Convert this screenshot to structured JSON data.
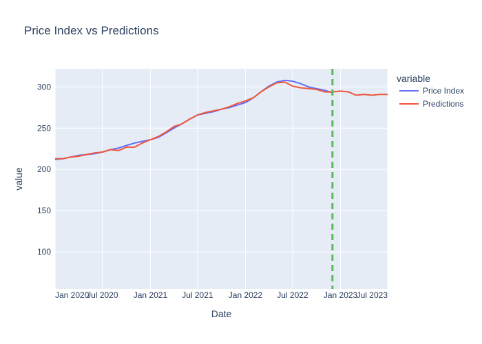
{
  "chart_data": {
    "type": "line",
    "title": "Price Index vs Predictions",
    "xlabel": "Date",
    "ylabel": "value",
    "x_range": [
      "2020-01-01",
      "2023-07-01"
    ],
    "ylim": [
      55,
      322
    ],
    "x_ticks": [
      {
        "date": "2020-01-01",
        "label": "Jan 2020"
      },
      {
        "date": "2020-07-01",
        "label": "Jul 2020"
      },
      {
        "date": "2021-01-01",
        "label": "Jan 2021"
      },
      {
        "date": "2021-07-01",
        "label": "Jul 2021"
      },
      {
        "date": "2022-01-01",
        "label": "Jan 2022"
      },
      {
        "date": "2022-07-01",
        "label": "Jul 2022"
      },
      {
        "date": "2023-01-01",
        "label": "Jan 2023"
      },
      {
        "date": "2023-07-01",
        "label": "Jul 2023"
      }
    ],
    "y_ticks": [
      100,
      150,
      200,
      250,
      300
    ],
    "legend": {
      "title": "variable",
      "position": "right"
    },
    "vline": {
      "date": "2022-12-01",
      "color": "#5cb85c",
      "style": "dashed"
    },
    "grid": true,
    "series": [
      {
        "name": "Price Index",
        "color": "#636efa",
        "points": [
          [
            "2020-01-01",
            212
          ],
          [
            "2020-02-01",
            213
          ],
          [
            "2020-03-01",
            215
          ],
          [
            "2020-04-01",
            217
          ],
          [
            "2020-05-01",
            218
          ],
          [
            "2020-06-01",
            219
          ],
          [
            "2020-07-01",
            221
          ],
          [
            "2020-08-01",
            224
          ],
          [
            "2020-09-01",
            226
          ],
          [
            "2020-10-01",
            229
          ],
          [
            "2020-11-01",
            232
          ],
          [
            "2020-12-01",
            234
          ],
          [
            "2021-01-01",
            236
          ],
          [
            "2021-02-01",
            239
          ],
          [
            "2021-03-01",
            244
          ],
          [
            "2021-04-01",
            250
          ],
          [
            "2021-05-01",
            255
          ],
          [
            "2021-06-01",
            261
          ],
          [
            "2021-07-01",
            266
          ],
          [
            "2021-08-01",
            268
          ],
          [
            "2021-09-01",
            270
          ],
          [
            "2021-10-01",
            273
          ],
          [
            "2021-11-01",
            275
          ],
          [
            "2021-12-01",
            278
          ],
          [
            "2022-01-01",
            281
          ],
          [
            "2022-02-01",
            287
          ],
          [
            "2022-03-01",
            294
          ],
          [
            "2022-04-01",
            301
          ],
          [
            "2022-05-01",
            306
          ],
          [
            "2022-06-01",
            308
          ],
          [
            "2022-07-01",
            307
          ],
          [
            "2022-08-01",
            304
          ],
          [
            "2022-09-01",
            300
          ],
          [
            "2022-10-01",
            298
          ],
          [
            "2022-11-01",
            296
          ],
          [
            "2022-12-01",
            293
          ]
        ]
      },
      {
        "name": "Predictions",
        "color": "#ef553b",
        "points": [
          [
            "2020-01-01",
            213
          ],
          [
            "2020-02-01",
            213
          ],
          [
            "2020-03-01",
            215
          ],
          [
            "2020-04-01",
            216
          ],
          [
            "2020-05-01",
            218
          ],
          [
            "2020-06-01",
            220
          ],
          [
            "2020-07-01",
            221
          ],
          [
            "2020-08-01",
            224
          ],
          [
            "2020-09-01",
            223
          ],
          [
            "2020-10-01",
            227
          ],
          [
            "2020-11-01",
            227
          ],
          [
            "2020-12-01",
            232
          ],
          [
            "2021-01-01",
            236
          ],
          [
            "2021-02-01",
            240
          ],
          [
            "2021-03-01",
            245
          ],
          [
            "2021-04-01",
            252
          ],
          [
            "2021-05-01",
            255
          ],
          [
            "2021-06-01",
            261
          ],
          [
            "2021-07-01",
            266
          ],
          [
            "2021-08-01",
            269
          ],
          [
            "2021-09-01",
            271
          ],
          [
            "2021-10-01",
            273
          ],
          [
            "2021-11-01",
            276
          ],
          [
            "2021-12-01",
            280
          ],
          [
            "2022-01-01",
            283
          ],
          [
            "2022-02-01",
            287
          ],
          [
            "2022-03-01",
            294
          ],
          [
            "2022-04-01",
            300
          ],
          [
            "2022-05-01",
            305
          ],
          [
            "2022-06-01",
            306
          ],
          [
            "2022-07-01",
            301
          ],
          [
            "2022-08-01",
            299
          ],
          [
            "2022-09-01",
            298
          ],
          [
            "2022-10-01",
            297
          ],
          [
            "2022-11-01",
            294
          ],
          [
            "2022-12-01",
            294
          ],
          [
            "2023-01-01",
            295
          ],
          [
            "2023-02-01",
            294
          ],
          [
            "2023-03-01",
            290
          ],
          [
            "2023-04-01",
            291
          ],
          [
            "2023-05-01",
            290
          ],
          [
            "2023-06-01",
            291
          ],
          [
            "2023-07-01",
            291
          ]
        ]
      }
    ]
  }
}
